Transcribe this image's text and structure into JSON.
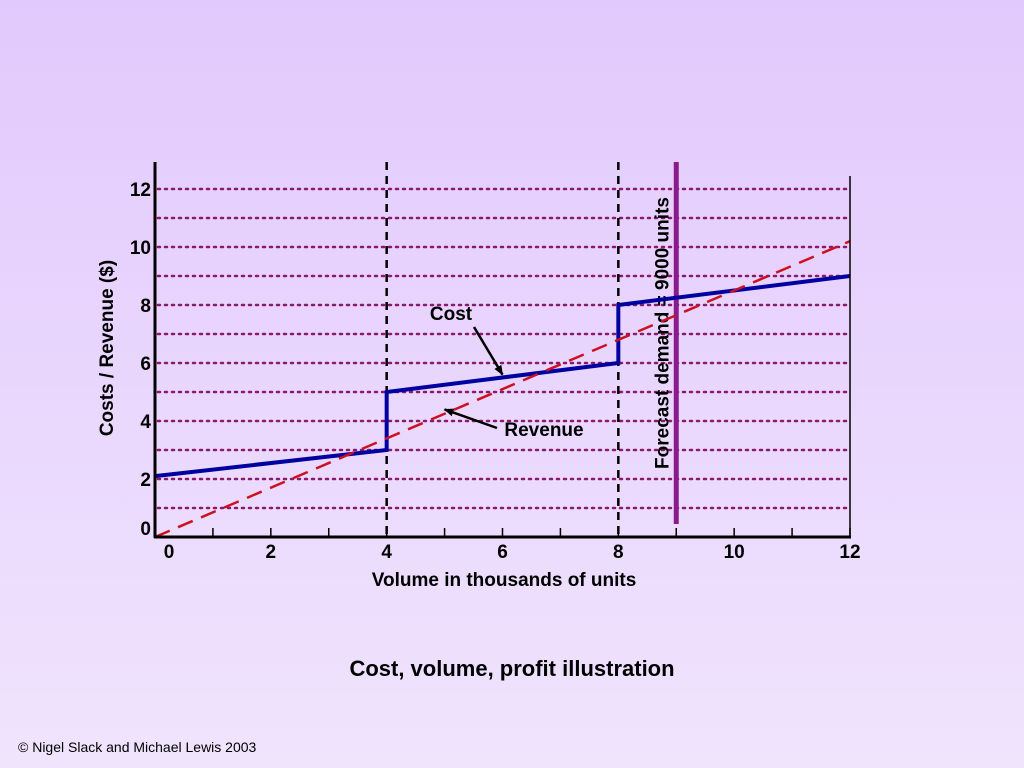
{
  "caption": "Cost, volume, profit illustration",
  "copyright": "© Nigel Slack and Michael Lewis 2003",
  "chart_data": {
    "type": "line",
    "title": "",
    "xlabel": "Volume in thousands of units",
    "ylabel": "Costs / Revenue ($)",
    "xlim": [
      0,
      12
    ],
    "ylim": [
      0,
      13
    ],
    "x_ticks": [
      0,
      2,
      4,
      6,
      8,
      10,
      12
    ],
    "x_tick_labels": [
      "0",
      "2",
      "4",
      "6",
      "8",
      "10",
      "12"
    ],
    "y_ticks": [
      0,
      2,
      4,
      6,
      8,
      10,
      12
    ],
    "y_tick_labels": [
      "0",
      "2",
      "4",
      "6",
      "8",
      "10",
      "12"
    ],
    "grid": {
      "y_dotted_every": 1,
      "color": "#8b1a6b"
    },
    "series": [
      {
        "name": "Cost",
        "color": "#0000a0",
        "style": "solid",
        "points": [
          [
            0,
            2.1
          ],
          [
            4,
            3.0
          ],
          [
            4,
            5.0
          ],
          [
            8,
            6.0
          ],
          [
            8,
            8.0
          ],
          [
            12,
            9.0
          ]
        ]
      },
      {
        "name": "Revenue",
        "color": "#cc1122",
        "style": "dashed",
        "points": [
          [
            0,
            0
          ],
          [
            12,
            10.2
          ]
        ]
      }
    ],
    "reference_lines": [
      {
        "x": 4,
        "style": "dashed",
        "color": "#000000"
      },
      {
        "x": 8,
        "style": "dashed",
        "color": "#000000"
      },
      {
        "x": 9,
        "style": "solid",
        "color": "#8b1a8b",
        "label": "Forecast demand = 9000 units"
      }
    ],
    "annotations": [
      {
        "text": "Cost",
        "target": [
          6,
          5.6
        ]
      },
      {
        "text": "Revenue",
        "target": [
          5,
          4.4
        ]
      }
    ]
  }
}
